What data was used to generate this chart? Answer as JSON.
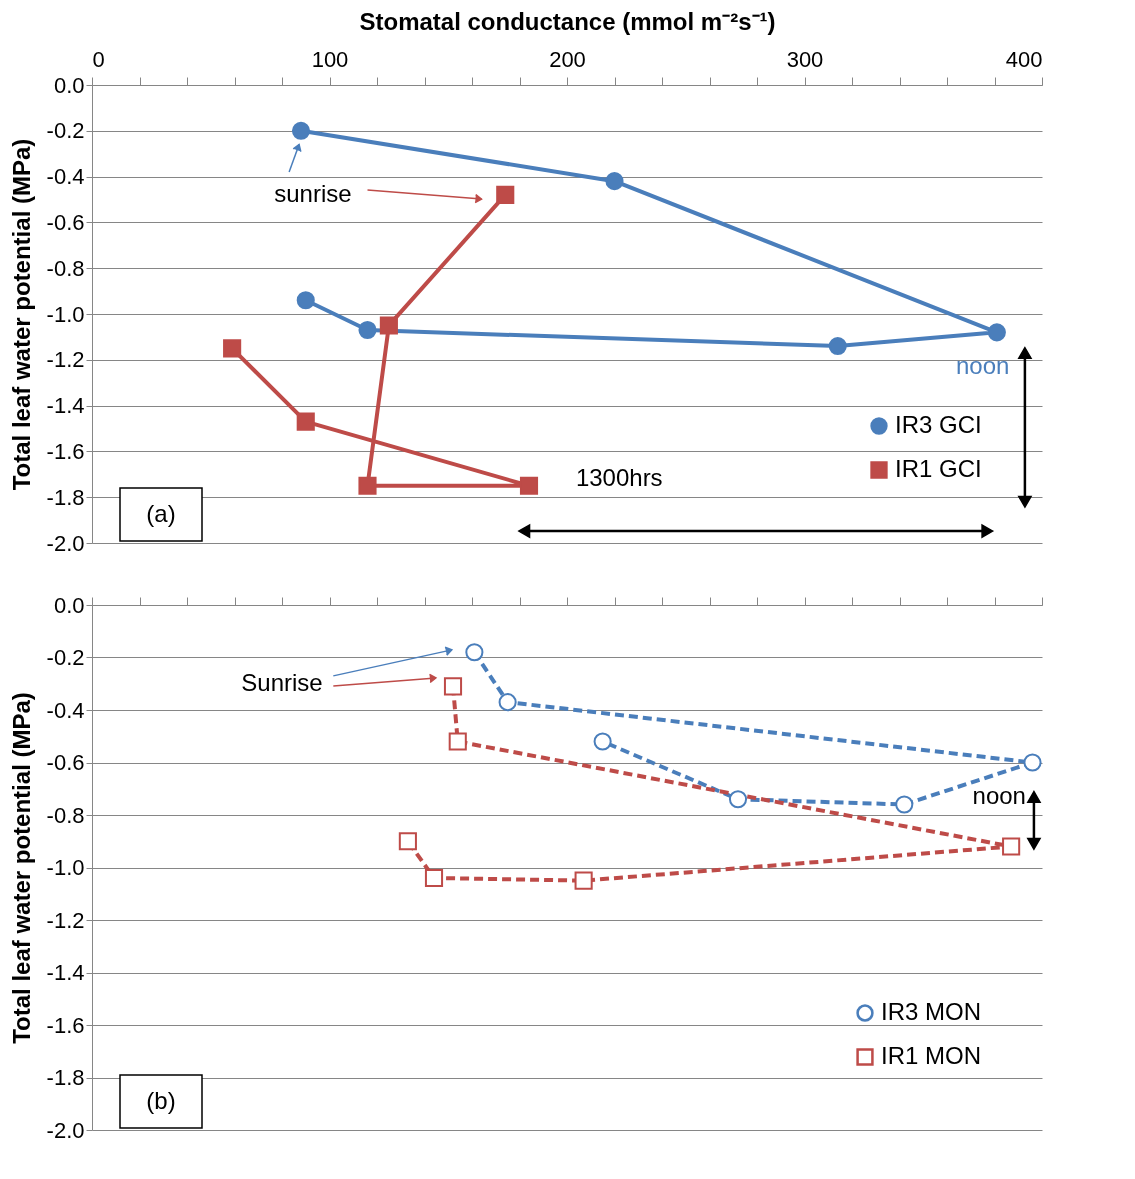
{
  "chart_data": [
    {
      "type": "line",
      "xlabel": "Stomatal conductance (mmol m⁻²s⁻¹)",
      "ylabel": "Total leaf water potential (MPa)",
      "xlim": [
        0,
        400
      ],
      "xticks": [
        0,
        {
          "value": 20,
          "label": null
        },
        {
          "value": 40,
          "label": null
        },
        {
          "value": 60,
          "label": null
        },
        {
          "value": 80,
          "label": null
        },
        100,
        {
          "value": 120,
          "label": null
        },
        {
          "value": 140,
          "label": null
        },
        {
          "value": 160,
          "label": null
        },
        {
          "value": 180,
          "label": null
        },
        200,
        {
          "value": 220,
          "label": null
        },
        {
          "value": 240,
          "label": null
        },
        {
          "value": 260,
          "label": null
        },
        {
          "value": 280,
          "label": null
        },
        300,
        {
          "value": 320,
          "label": null
        },
        {
          "value": 340,
          "label": null
        },
        {
          "value": 360,
          "label": null
        },
        {
          "value": 380,
          "label": null
        },
        400
      ],
      "ylim": [
        -2.0,
        0.0
      ],
      "yticks": [
        {
          "value": -2.0,
          "label": "-2.0"
        },
        -1.8,
        -1.6,
        -1.4,
        -1.2,
        {
          "value": -1.0,
          "label": "-1.0"
        },
        -0.8,
        -0.6,
        -0.4,
        -0.2,
        {
          "value": 0,
          "label": "0.0"
        }
      ],
      "grid": "y",
      "legend": "bottom right",
      "line_style": "solid",
      "series": [
        {
          "name": "IR3 GCI",
          "color": "#4a7ebb",
          "marker": "circle",
          "x": [
            88,
            220,
            381,
            314,
            116,
            90
          ],
          "values": [
            -0.2,
            -0.42,
            -1.08,
            -1.14,
            -1.07,
            -0.94
          ]
        },
        {
          "name": "IR1 GCI",
          "color": "#be4b48",
          "marker": "square",
          "x": [
            174,
            125,
            116,
            184,
            90,
            59
          ],
          "values": [
            -0.48,
            -1.05,
            -1.75,
            -1.75,
            -1.47,
            -1.15
          ]
        }
      ],
      "annotations": [
        "sunrise",
        "noon",
        "1300hrs",
        "(a)"
      ]
    },
    {
      "type": "line",
      "ylabel": "Total leaf water potential (MPa)",
      "tick_labels": "y",
      "xlim": [
        0,
        400
      ],
      "xticks": [
        0,
        {
          "value": 20,
          "label": null
        },
        {
          "value": 40,
          "label": null
        },
        {
          "value": 60,
          "label": null
        },
        {
          "value": 80,
          "label": null
        },
        100,
        {
          "value": 120,
          "label": null
        },
        {
          "value": 140,
          "label": null
        },
        {
          "value": 160,
          "label": null
        },
        {
          "value": 180,
          "label": null
        },
        200,
        {
          "value": 220,
          "label": null
        },
        {
          "value": 240,
          "label": null
        },
        {
          "value": 260,
          "label": null
        },
        {
          "value": 280,
          "label": null
        },
        300,
        {
          "value": 320,
          "label": null
        },
        {
          "value": 340,
          "label": null
        },
        {
          "value": 360,
          "label": null
        },
        {
          "value": 380,
          "label": null
        },
        400
      ],
      "ylim": [
        -2.0,
        0.0
      ],
      "yticks": [
        {
          "value": -2.0,
          "label": "-2.0"
        },
        -1.8,
        -1.6,
        -1.4,
        -1.2,
        {
          "value": -1.0,
          "label": "-1.0"
        },
        -0.8,
        -0.6,
        -0.4,
        -0.2,
        {
          "value": 0,
          "label": "0.0"
        }
      ],
      "grid": "y",
      "legend": "bottom right",
      "line_style": "dashed",
      "series": [
        {
          "name": "IR3 MON",
          "color": "#4a7ebb",
          "marker": "circle",
          "x": [
            161,
            175,
            396,
            342,
            272,
            215
          ],
          "values": [
            -0.18,
            -0.37,
            -0.6,
            -0.76,
            -0.74,
            -0.52
          ]
        },
        {
          "name": "IR1 MON",
          "color": "#be4b48",
          "marker": "square",
          "x": [
            152,
            154,
            387,
            207,
            144,
            133
          ],
          "values": [
            -0.31,
            -0.52,
            -0.92,
            -1.05,
            -1.04,
            -0.9
          ]
        }
      ],
      "annotations": [
        "Sunrise",
        "noon",
        "(b)"
      ]
    }
  ]
}
